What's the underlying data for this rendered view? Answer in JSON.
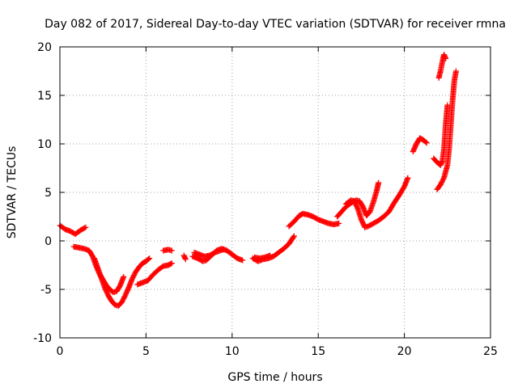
{
  "chart_data": {
    "type": "scatter",
    "title": "Day 082 of 2017, Sidereal Day-to-day VTEC variation (SDTVAR) for receiver rmna",
    "xlabel": "GPS time / hours",
    "ylabel": "SDTVAR / TECUs",
    "xlim": [
      0,
      25
    ],
    "ylim": [
      -10,
      20
    ],
    "xticks": [
      "0",
      "5",
      "10",
      "15",
      "20",
      "25"
    ],
    "yticks": [
      "-10",
      "-5",
      "0",
      "5",
      "10",
      "15",
      "20"
    ],
    "grid": true,
    "marker": "plus",
    "color": "#ff0000",
    "series": [
      {
        "segments": [
          [
            [
              0.0,
              1.6
            ],
            [
              0.3,
              1.2
            ],
            [
              0.6,
              1.0
            ],
            [
              0.9,
              0.7
            ],
            [
              1.2,
              1.1
            ],
            [
              1.5,
              1.4
            ]
          ],
          [
            [
              0.8,
              -0.6
            ],
            [
              1.1,
              -0.7
            ],
            [
              1.4,
              -0.8
            ],
            [
              1.7,
              -1.0
            ],
            [
              1.9,
              -1.6
            ],
            [
              2.1,
              -2.6
            ],
            [
              2.3,
              -3.4
            ],
            [
              2.5,
              -4.0
            ],
            [
              2.7,
              -4.6
            ],
            [
              2.9,
              -5.0
            ],
            [
              3.1,
              -5.3
            ],
            [
              3.3,
              -5.2
            ],
            [
              3.5,
              -4.6
            ],
            [
              3.7,
              -3.7
            ]
          ],
          [
            [
              2.0,
              -1.8
            ],
            [
              2.2,
              -2.8
            ],
            [
              2.4,
              -3.8
            ],
            [
              2.6,
              -4.8
            ],
            [
              2.8,
              -5.6
            ],
            [
              3.0,
              -6.2
            ],
            [
              3.2,
              -6.6
            ],
            [
              3.4,
              -6.7
            ],
            [
              3.6,
              -6.3
            ],
            [
              3.8,
              -5.6
            ],
            [
              4.0,
              -4.8
            ],
            [
              4.2,
              -3.9
            ],
            [
              4.4,
              -3.2
            ],
            [
              4.6,
              -2.7
            ],
            [
              4.8,
              -2.3
            ],
            [
              5.0,
              -2.1
            ],
            [
              5.2,
              -1.8
            ]
          ],
          [
            [
              4.5,
              -4.5
            ],
            [
              4.8,
              -4.3
            ],
            [
              5.1,
              -4.1
            ],
            [
              5.4,
              -3.5
            ],
            [
              5.7,
              -3.0
            ],
            [
              6.0,
              -2.6
            ],
            [
              6.3,
              -2.5
            ],
            [
              6.5,
              -2.3
            ]
          ],
          [
            [
              6.0,
              -1.0
            ],
            [
              6.3,
              -0.9
            ],
            [
              6.5,
              -1.0
            ]
          ],
          [
            [
              7.2,
              -1.5
            ],
            [
              7.3,
              -1.9
            ]
          ],
          [
            [
              7.7,
              -1.6
            ],
            [
              8.0,
              -1.8
            ],
            [
              8.3,
              -2.1
            ],
            [
              8.5,
              -2.0
            ],
            [
              8.8,
              -1.5
            ],
            [
              9.1,
              -1.0
            ],
            [
              9.4,
              -0.8
            ],
            [
              9.7,
              -1.0
            ],
            [
              10.0,
              -1.4
            ],
            [
              10.3,
              -1.8
            ],
            [
              10.6,
              -2.0
            ]
          ],
          [
            [
              7.8,
              -1.2
            ],
            [
              8.1,
              -1.4
            ],
            [
              8.4,
              -1.6
            ],
            [
              8.7,
              -1.5
            ],
            [
              9.0,
              -1.2
            ],
            [
              9.3,
              -1.0
            ],
            [
              9.5,
              -0.9
            ]
          ],
          [
            [
              11.2,
              -1.8
            ],
            [
              11.5,
              -2.1
            ],
            [
              11.8,
              -1.9
            ],
            [
              12.1,
              -1.8
            ],
            [
              12.4,
              -1.6
            ],
            [
              12.7,
              -1.2
            ],
            [
              13.0,
              -0.8
            ],
            [
              13.3,
              -0.3
            ],
            [
              13.6,
              0.5
            ]
          ],
          [
            [
              11.3,
              -1.7
            ],
            [
              11.6,
              -1.8
            ],
            [
              11.9,
              -1.7
            ],
            [
              12.2,
              -1.5
            ]
          ],
          [
            [
              13.3,
              1.5
            ],
            [
              13.6,
              2.0
            ],
            [
              13.9,
              2.6
            ],
            [
              14.1,
              2.8
            ],
            [
              14.4,
              2.7
            ],
            [
              14.7,
              2.5
            ],
            [
              15.0,
              2.2
            ],
            [
              15.3,
              2.0
            ],
            [
              15.6,
              1.8
            ],
            [
              15.9,
              1.7
            ],
            [
              16.2,
              1.8
            ]
          ],
          [
            [
              16.1,
              2.5
            ],
            [
              16.3,
              2.9
            ],
            [
              16.6,
              3.5
            ],
            [
              16.9,
              3.9
            ],
            [
              17.2,
              4.2
            ],
            [
              17.4,
              4.1
            ],
            [
              17.6,
              3.5
            ],
            [
              17.8,
              2.6
            ],
            [
              18.0,
              3.0
            ],
            [
              18.2,
              4.0
            ],
            [
              18.4,
              5.2
            ],
            [
              18.5,
              6.0
            ]
          ],
          [
            [
              16.6,
              3.8
            ],
            [
              16.9,
              4.2
            ],
            [
              17.1,
              4.1
            ],
            [
              17.3,
              3.3
            ],
            [
              17.5,
              2.2
            ],
            [
              17.7,
              1.4
            ],
            [
              17.9,
              1.5
            ],
            [
              18.2,
              1.8
            ],
            [
              18.5,
              2.1
            ],
            [
              18.8,
              2.5
            ],
            [
              19.1,
              3.0
            ],
            [
              19.4,
              3.9
            ],
            [
              19.7,
              4.7
            ],
            [
              20.0,
              5.6
            ],
            [
              20.2,
              6.5
            ]
          ],
          [
            [
              20.5,
              9.2
            ],
            [
              20.7,
              10.0
            ],
            [
              20.9,
              10.6
            ],
            [
              21.1,
              10.4
            ],
            [
              21.3,
              10.1
            ]
          ],
          [
            [
              21.7,
              8.5
            ],
            [
              21.9,
              8.1
            ],
            [
              22.1,
              7.8
            ],
            [
              22.2,
              8.2
            ],
            [
              22.3,
              9.5
            ],
            [
              22.4,
              12.0
            ],
            [
              22.5,
              14.0
            ]
          ],
          [
            [
              21.9,
              5.3
            ],
            [
              22.1,
              5.8
            ],
            [
              22.3,
              6.5
            ],
            [
              22.5,
              7.8
            ],
            [
              22.6,
              9.5
            ],
            [
              22.7,
              12.0
            ],
            [
              22.8,
              14.5
            ],
            [
              22.9,
              16.5
            ],
            [
              23.0,
              17.5
            ]
          ],
          [
            [
              22.0,
              16.8
            ],
            [
              22.1,
              17.5
            ],
            [
              22.2,
              18.4
            ],
            [
              22.3,
              19.2
            ],
            [
              22.4,
              18.8
            ]
          ]
        ]
      }
    ]
  }
}
